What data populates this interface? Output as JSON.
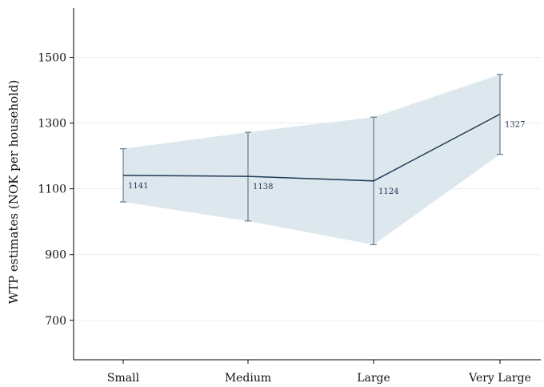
{
  "chart_data": {
    "type": "line",
    "title": "",
    "xlabel": "",
    "ylabel": "WTP estimates (NOK per household)",
    "categories": [
      "Small",
      "Medium",
      "Large",
      "Very Large"
    ],
    "values": [
      1141,
      1138,
      1124,
      1327
    ],
    "ci_lower": [
      1060,
      1002,
      930,
      1205
    ],
    "ci_upper": [
      1222,
      1272,
      1318,
      1448
    ],
    "data_labels": [
      "1141",
      "1138",
      "1124",
      "1327"
    ],
    "yticks": [
      700,
      900,
      1100,
      1300,
      1500
    ],
    "ytick_labels": [
      "700",
      "900",
      "1100",
      "1300",
      "1500"
    ],
    "ylim": [
      580,
      1650
    ],
    "grid": true,
    "legend": "none",
    "colors": {
      "line": "#1f3a55",
      "band": "#dde7ee",
      "errorbar": "#6b7c8c",
      "grid": "#e8eef2",
      "axis": "#000000"
    }
  }
}
